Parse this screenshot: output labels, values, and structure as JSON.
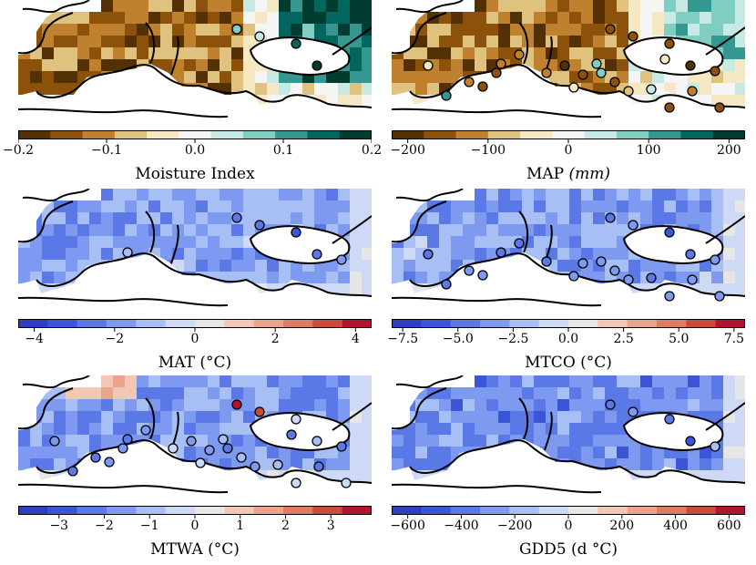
{
  "panels": [
    {
      "id": "moisture",
      "title": "Moisture Index",
      "unit": "",
      "colormap": "brown-teal",
      "range": [
        -0.2,
        0.2
      ],
      "ticks": [
        -0.2,
        -0.1,
        0.0,
        0.1,
        0.2
      ],
      "tick_labels": [
        "−0.2",
        "−0.1",
        "0.0",
        "0.1",
        "0.2"
      ],
      "site_values": [
        0.08,
        0.02,
        0.15,
        0.18
      ]
    },
    {
      "id": "map",
      "title": "MAP",
      "unit": "(mm)",
      "colormap": "brown-teal",
      "range": [
        -220,
        220
      ],
      "ticks": [
        -200,
        -100,
        0,
        100,
        200
      ],
      "tick_labels": [
        "−200",
        "−100",
        "0",
        "100",
        "200"
      ],
      "site_values": [
        -180,
        -160,
        -150,
        -200,
        -170,
        -130,
        120,
        -160,
        -140,
        -180,
        -150,
        20,
        -150,
        -180,
        -40,
        -130,
        -40,
        60,
        -80,
        -110,
        -130,
        80,
        -180,
        -60,
        -200
      ]
    },
    {
      "id": "mat",
      "title": "MAT (°C)",
      "unit": "",
      "colormap": "blue-red",
      "range": [
        -4.4,
        4.4
      ],
      "ticks": [
        -4,
        -2,
        0,
        2,
        4
      ],
      "tick_labels": [
        "−4",
        "−2",
        "0",
        "2",
        "4"
      ],
      "site_values": [
        -2.5,
        -2.8,
        -3.0,
        -2.6,
        -2.0,
        -1.0
      ]
    },
    {
      "id": "mtco",
      "title": "MTCO (°C)",
      "unit": "",
      "colormap": "blue-red",
      "range": [
        -8,
        8
      ],
      "ticks": [
        -7.5,
        -5.0,
        -2.5,
        0.0,
        2.5,
        5.0,
        7.5
      ],
      "tick_labels": [
        "−7.5",
        "−5.0",
        "−2.5",
        "0.0",
        "2.5",
        "5.0",
        "7.5"
      ],
      "site_values": [
        -5,
        -4,
        -6,
        -5,
        -4,
        -5,
        -5,
        -4,
        -5,
        -4,
        -4,
        -5,
        -3,
        -4,
        -5,
        -5,
        -4,
        -3,
        -4,
        -4,
        -4
      ]
    },
    {
      "id": "mtwa",
      "title": "MTWA (°C)",
      "unit": "",
      "colormap": "blue-red",
      "range": [
        -3.9,
        3.9
      ],
      "ticks": [
        -3,
        -2,
        -1,
        0,
        1,
        2,
        3
      ],
      "tick_labels": [
        "−3",
        "−2",
        "−1",
        "0",
        "1",
        "2",
        "3"
      ],
      "site_values": [
        3.5,
        3.0,
        -0.5,
        -1.2,
        -2.0,
        -2.6,
        -2.2,
        -1.5,
        -1.8,
        -1.6,
        -0.8,
        -1.0,
        -0.6,
        -0.5,
        -1.4,
        -0.6,
        -0.4,
        -2.0,
        -1.8,
        -2.2,
        -2.4,
        -0.8,
        -1.8,
        -2.0,
        -1.5
      ]
    },
    {
      "id": "gdd5",
      "title": "GDD5 (d °C)",
      "unit": "",
      "colormap": "blue-red",
      "range": [
        -660,
        660
      ],
      "ticks": [
        -600,
        -400,
        -200,
        0,
        200,
        400,
        600
      ],
      "tick_labels": [
        "−600",
        "−400",
        "−200",
        "0",
        "200",
        "400",
        "600"
      ],
      "site_values": [
        -400,
        -300,
        -350,
        -500,
        -120
      ]
    }
  ]
}
